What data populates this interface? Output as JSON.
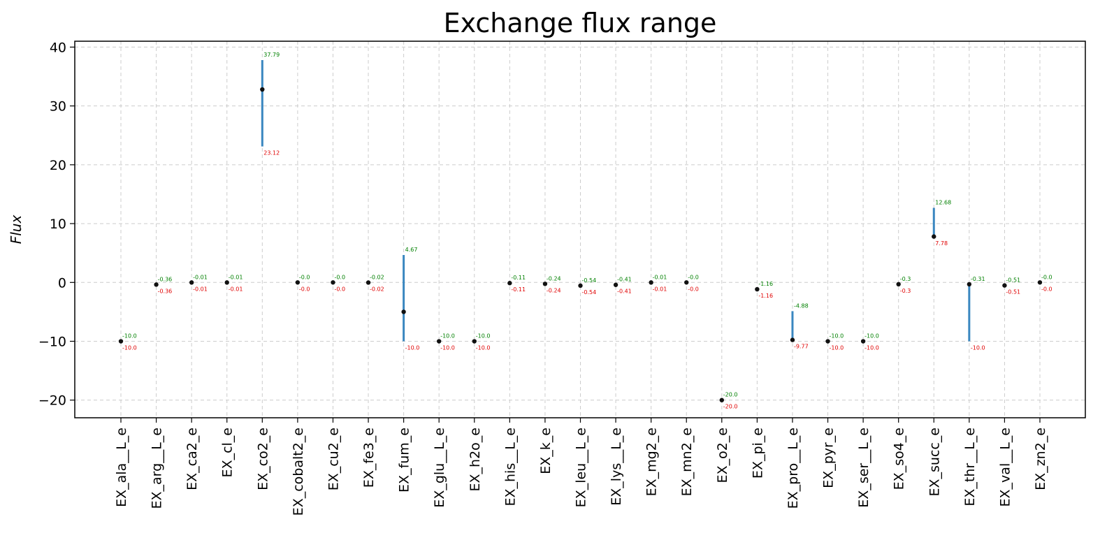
{
  "chart_data": {
    "type": "range",
    "title": "Exchange flux range",
    "xlabel": "",
    "ylabel": "Flux",
    "ylim": [
      -23,
      41
    ],
    "yticks": [
      -20,
      -10,
      0,
      10,
      20,
      30,
      40
    ],
    "ytick_labels": [
      "−20",
      "−10",
      "0",
      "10",
      "20",
      "30",
      "40"
    ],
    "grid": true,
    "categories": [
      "EX_ala__L_e",
      "EX_arg__L_e",
      "EX_ca2_e",
      "EX_cl_e",
      "EX_co2_e",
      "EX_cobalt2_e",
      "EX_cu2_e",
      "EX_fe3_e",
      "EX_fum_e",
      "EX_glu__L_e",
      "EX_h2o_e",
      "EX_his__L_e",
      "EX_k_e",
      "EX_leu__L_e",
      "EX_lys__L_e",
      "EX_mg2_e",
      "EX_mn2_e",
      "EX_o2_e",
      "EX_pi_e",
      "EX_pro__L_e",
      "EX_pyr_e",
      "EX_ser__L_e",
      "EX_so4_e",
      "EX_succ_e",
      "EX_thr__L_e",
      "EX_val__L_e",
      "EX_zn2_e"
    ],
    "max": [
      -10.0,
      -0.36,
      -0.01,
      -0.01,
      37.79,
      -0.0,
      -0.0,
      -0.02,
      4.67,
      -10.0,
      -10.0,
      -0.11,
      -0.24,
      -0.54,
      -0.41,
      -0.01,
      -0.0,
      -20.0,
      -1.16,
      -4.88,
      -10.0,
      -10.0,
      -0.3,
      12.68,
      -0.31,
      -0.51,
      -0.0
    ],
    "min": [
      -10.0,
      -0.36,
      -0.01,
      -0.01,
      23.12,
      -0.0,
      -0.0,
      -0.02,
      -10.0,
      -10.0,
      -10.0,
      -0.11,
      -0.24,
      -0.54,
      -0.41,
      -0.01,
      -0.0,
      -20.0,
      -1.16,
      -9.77,
      -10.0,
      -10.0,
      -0.3,
      7.78,
      -10.0,
      -0.51,
      -0.0
    ],
    "max_labels": [
      "-10.0",
      "-0.36",
      "-0.01",
      "-0.01",
      "37.79",
      "-0.0",
      "-0.0",
      "-0.02",
      "4.67",
      "-10.0",
      "-10.0",
      "-0.11",
      "-0.24",
      "-0.54",
      "-0.41",
      "-0.01",
      "-0.0",
      "-20.0",
      "-1.16",
      "-4.88",
      "-10.0",
      "-10.0",
      "-0.3",
      "12.68",
      "-0.31",
      "-0.51",
      "-0.0"
    ],
    "min_labels": [
      "-10.0",
      "-0.36",
      "-0.01",
      "-0.01",
      "23.12",
      "-0.0",
      "-0.0",
      "-0.02",
      "-10.0",
      "-10.0",
      "-10.0",
      "-0.11",
      "-0.24",
      "-0.54",
      "-0.41",
      "-0.01",
      "-0.0",
      "-20.0",
      "-1.16",
      "-9.77",
      "-10.0",
      "-10.0",
      "-0.3",
      "7.78",
      "-10.0",
      "-0.51",
      "-0.0"
    ],
    "point": [
      -10.0,
      -0.36,
      -0.01,
      -0.01,
      32.8,
      -0.0,
      -0.0,
      -0.02,
      -5.0,
      -10.0,
      -10.0,
      -0.11,
      -0.24,
      -0.54,
      -0.41,
      -0.01,
      -0.0,
      -20.0,
      -1.16,
      -9.77,
      -10.0,
      -10.0,
      -0.3,
      7.8,
      -0.31,
      -0.51,
      -0.0
    ],
    "colors": {
      "range_line": "#3a87c0",
      "point": "#111111",
      "max_label": "#008000",
      "min_label": "#e00000",
      "grid": "#cccccc",
      "axes": "#000000"
    }
  }
}
